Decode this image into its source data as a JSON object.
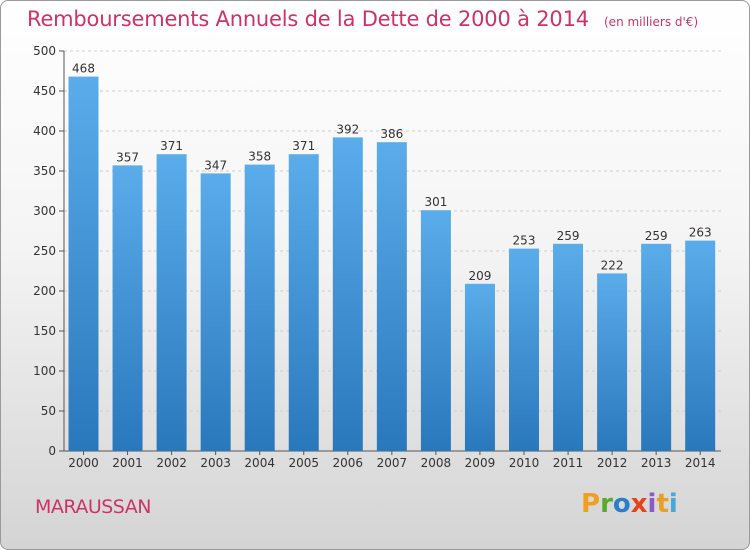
{
  "chart_data": {
    "type": "bar",
    "title": "Remboursements Annuels de la Dette de 2000 à 2014",
    "subtitle": "(en milliers d'€)",
    "categories": [
      "2000",
      "2001",
      "2002",
      "2003",
      "2004",
      "2005",
      "2006",
      "2007",
      "2008",
      "2009",
      "2010",
      "2011",
      "2012",
      "2013",
      "2014"
    ],
    "values": [
      468,
      357,
      371,
      347,
      358,
      371,
      392,
      386,
      301,
      209,
      253,
      259,
      222,
      259,
      263
    ],
    "ylim": [
      0,
      500
    ],
    "yticks": [
      0,
      50,
      100,
      150,
      200,
      250,
      300,
      350,
      400,
      450,
      500
    ],
    "grid": true,
    "bar_color": "#4f9fdc",
    "label_color": "#cc3366"
  },
  "commune": "MARAUSSAN",
  "brand": {
    "letters": [
      "P",
      "r",
      "o",
      "x",
      "i",
      "t",
      "i"
    ],
    "colors": [
      "#f0a020",
      "#5aaa2a",
      "#2a7fc8",
      "#e8421c",
      "#8a5ac8",
      "#e8a020",
      "#45a8d8"
    ]
  }
}
